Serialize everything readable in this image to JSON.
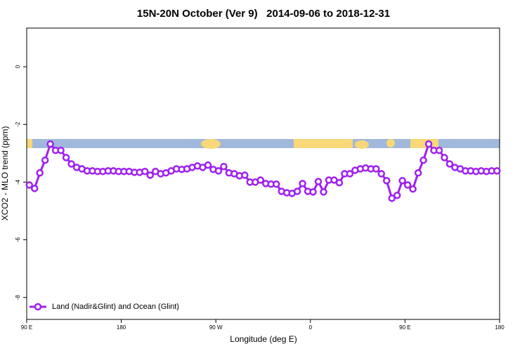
{
  "chart_data": {
    "type": "line",
    "title": "15N-20N October (Ver 9)   2014-09-06 to 2018-12-31",
    "xlabel": "Longitude (deg E)",
    "ylabel": "XCO2 - MLO trend (ppm)",
    "xlim": [
      90,
      540
    ],
    "xticks": [
      {
        "value": 90,
        "label": "90 E"
      },
      180,
      {
        "value": 270,
        "label": "90 W"
      },
      {
        "value": 360,
        "label": "0"
      },
      {
        "value": 450,
        "label": "90 E"
      },
      {
        "value": 540,
        "label": "180"
      }
    ],
    "ylim": [
      -8.76,
      1.34
    ],
    "yticks": [
      0,
      -2,
      -4,
      -6,
      -8
    ],
    "legend": "bottom-left",
    "x": [
      92.5,
      97.5,
      102.5,
      107.5,
      112.5,
      117.5,
      122.5,
      127.5,
      132.5,
      137.5,
      142.5,
      147.5,
      152.5,
      157.5,
      162.5,
      167.5,
      172.5,
      177.5,
      182.5,
      187.5,
      192.5,
      197.5,
      202.5,
      207.5,
      212.5,
      217.5,
      222.5,
      227.5,
      232.5,
      237.5,
      242.5,
      247.5,
      252.5,
      257.5,
      262.5,
      267.5,
      272.5,
      277.5,
      282.5,
      287.5,
      292.5,
      297.5,
      302.5,
      307.5,
      312.5,
      317.5,
      322.5,
      327.5,
      332.5,
      337.5,
      342.5,
      347.5,
      352.5,
      357.5,
      362.5,
      367.5,
      372.5,
      377.5,
      382.5,
      387.5,
      392.5,
      397.5,
      402.5,
      407.5,
      412.5,
      417.5,
      422.5,
      427.5,
      432.5,
      437.5,
      442.5,
      447.5,
      452.5,
      457.5,
      462.5,
      467.5,
      472.5,
      477.5,
      482.5,
      487.5,
      492.5,
      497.5,
      502.5,
      507.5,
      512.5,
      517.5,
      522.5,
      527.5,
      532.5,
      537.5
    ],
    "series": [
      {
        "name": "Land (Nadir&Glint) and Ocean (Glint)",
        "color": "#a020f0",
        "values": [
          -4.1,
          -4.22,
          -3.68,
          -3.24,
          -2.68,
          -2.9,
          -2.9,
          -3.15,
          -3.37,
          -3.49,
          -3.54,
          -3.61,
          -3.61,
          -3.63,
          -3.63,
          -3.61,
          -3.61,
          -3.63,
          -3.63,
          -3.63,
          -3.66,
          -3.66,
          -3.63,
          -3.76,
          -3.63,
          -3.71,
          -3.68,
          -3.61,
          -3.54,
          -3.56,
          -3.54,
          -3.49,
          -3.44,
          -3.49,
          -3.41,
          -3.56,
          -3.61,
          -3.46,
          -3.68,
          -3.71,
          -3.78,
          -3.76,
          -4.0,
          -4.0,
          -3.93,
          -4.05,
          -4.07,
          -4.07,
          -4.32,
          -4.37,
          -4.39,
          -4.32,
          -4.05,
          -4.32,
          -4.34,
          -3.98,
          -4.34,
          -3.93,
          -3.93,
          -4.02,
          -3.71,
          -3.71,
          -3.59,
          -3.54,
          -3.51,
          -3.54,
          -3.54,
          -3.71,
          -3.95,
          -4.56,
          -4.46,
          -3.95,
          -4.1,
          -4.24,
          -3.68,
          -3.24,
          -2.68,
          -2.9,
          -2.9,
          -3.15,
          -3.37,
          -3.49,
          -3.54,
          -3.61,
          -3.61,
          -3.63,
          -3.61,
          -3.63,
          -3.61,
          -3.61
        ]
      }
    ]
  }
}
